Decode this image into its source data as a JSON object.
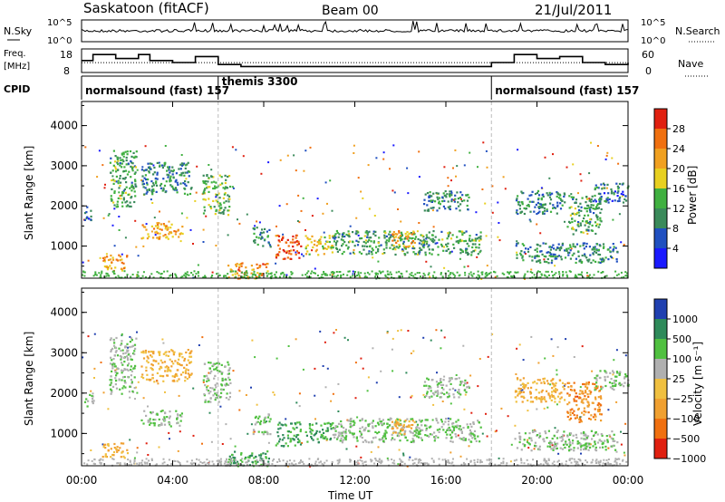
{
  "header": {
    "radar": "Saskatoon (fitACF)",
    "beam": "Beam 00",
    "date": "21/Jul/2011"
  },
  "sky_panel": {
    "left_label": "N.Sky",
    "left_ticks": [
      "10^5",
      "10^0"
    ],
    "right_label": "N.Search",
    "right_ticks": [
      "10^5",
      "10^0"
    ],
    "sky_color": "#000000"
  },
  "freq_panel": {
    "left_label_1": "Freq.",
    "left_label_2": "[MHz]",
    "left_ticks": [
      "18",
      "8"
    ],
    "right_label": "Nave",
    "right_ticks": [
      "60",
      "0"
    ],
    "freq_steps": [
      [
        0,
        14
      ],
      [
        0.5,
        17
      ],
      [
        1,
        17
      ],
      [
        1.5,
        15
      ],
      [
        2.5,
        17
      ],
      [
        3,
        14
      ],
      [
        4,
        13
      ],
      [
        5,
        16
      ],
      [
        6,
        12
      ],
      [
        7,
        11
      ],
      [
        18,
        13
      ],
      [
        19,
        17
      ],
      [
        20,
        15
      ],
      [
        21,
        16
      ],
      [
        22,
        13
      ],
      [
        23,
        12
      ],
      [
        24,
        13
      ]
    ],
    "nave_level": 25
  },
  "cpid": {
    "label": "CPID",
    "segments": [
      {
        "label": "normalsound (fast)  157",
        "start": 0
      },
      {
        "label": "themis  3300",
        "start": 6
      },
      {
        "label": "normalsound (fast)  157",
        "start": 18
      }
    ]
  },
  "power_panel": {
    "ylabel": "Slant Range [km]",
    "yticks": [
      1000,
      2000,
      3000,
      4000
    ],
    "colorbar_label": "Power [dB]",
    "colorbar_ticks": [
      "4",
      "8",
      "12",
      "16",
      "20",
      "24",
      "28"
    ],
    "colors": [
      "#1a1aff",
      "#2050c0",
      "#3a8a5a",
      "#40b040",
      "#e8d020",
      "#f0a020",
      "#f07010",
      "#e02010"
    ]
  },
  "velocity_panel": {
    "ylabel": "Slant Range [km]",
    "yticks": [
      1000,
      2000,
      3000,
      4000
    ],
    "colorbar_label": "Velocity [m s⁻¹]",
    "colorbar_ticks": [
      "1000",
      "500",
      "100",
      "25",
      "−25",
      "−100",
      "−500",
      "−1000"
    ],
    "colors": [
      "#2040b0",
      "#2e8a5a",
      "#50c040",
      "#b0b0b0",
      "#f0c040",
      "#f0a030",
      "#f07010",
      "#e02010"
    ]
  },
  "time_axis": {
    "xlabel": "Time UT",
    "ticks": [
      "00:00",
      "04:00",
      "08:00",
      "12:00",
      "16:00",
      "20:00",
      "00:00"
    ],
    "range_hours": [
      0,
      24
    ]
  },
  "chart_data": {
    "type": "heatmap",
    "title": "Saskatoon (fitACF)  Beam 00  21/Jul/2011",
    "xlabel": "Time UT",
    "ylabel": "Slant Range [km]",
    "xlim": [
      0,
      24
    ],
    "ylim": [
      200,
      4600
    ],
    "power_ticks_db": [
      4,
      8,
      12,
      16,
      20,
      24,
      28
    ],
    "velocity_ticks_ms": [
      1000,
      500,
      100,
      25,
      -25,
      -100,
      -500,
      -1000
    ],
    "scatter_regions": [
      {
        "t0": 0.1,
        "t1": 0.5,
        "r0": 1650,
        "r1": 2000,
        "power": 8,
        "velocity": 25
      },
      {
        "t0": 0.9,
        "t1": 2.0,
        "r0": 400,
        "r1": 800,
        "power": 22,
        "velocity": -100
      },
      {
        "t0": 1.2,
        "t1": 2.4,
        "r0": 2000,
        "r1": 3400,
        "power": 12,
        "velocity": 25
      },
      {
        "t0": 2.6,
        "t1": 4.8,
        "r0": 2300,
        "r1": 3100,
        "power": 10,
        "velocity": -100
      },
      {
        "t0": 2.6,
        "t1": 4.4,
        "r0": 1200,
        "r1": 1600,
        "power": 22,
        "velocity": 25
      },
      {
        "t0": 5.3,
        "t1": 6.5,
        "r0": 1800,
        "r1": 2800,
        "power": 14,
        "velocity": 25
      },
      {
        "t0": 6.4,
        "t1": 8.2,
        "r0": 200,
        "r1": 600,
        "power": 24,
        "velocity": 100
      },
      {
        "t0": 7.5,
        "t1": 8.3,
        "r0": 1000,
        "r1": 1500,
        "power": 10,
        "velocity": 25
      },
      {
        "t0": 8.5,
        "t1": 9.6,
        "r0": 700,
        "r1": 1300,
        "power": 28,
        "velocity": 100
      },
      {
        "t0": 9.8,
        "t1": 11.0,
        "r0": 800,
        "r1": 1300,
        "power": 18,
        "velocity": 100
      },
      {
        "t0": 11.0,
        "t1": 17.5,
        "r0": 800,
        "r1": 1400,
        "power": 12,
        "velocity": 25
      },
      {
        "t0": 13.6,
        "t1": 14.6,
        "r0": 1000,
        "r1": 1400,
        "power": 22,
        "velocity": -100
      },
      {
        "t0": 15.0,
        "t1": 17.0,
        "r0": 1900,
        "r1": 2400,
        "power": 10,
        "velocity": 25
      },
      {
        "t0": 19.0,
        "t1": 21.2,
        "r0": 1800,
        "r1": 2400,
        "power": 10,
        "velocity": -100
      },
      {
        "t0": 21.3,
        "t1": 22.8,
        "r0": 1300,
        "r1": 2300,
        "power": 12,
        "velocity": -500
      },
      {
        "t0": 22.5,
        "t1": 24.0,
        "r0": 2100,
        "r1": 2600,
        "power": 8,
        "velocity": 25
      },
      {
        "t0": 19.0,
        "t1": 23.5,
        "r0": 600,
        "r1": 1100,
        "power": 10,
        "velocity": 25
      }
    ]
  }
}
